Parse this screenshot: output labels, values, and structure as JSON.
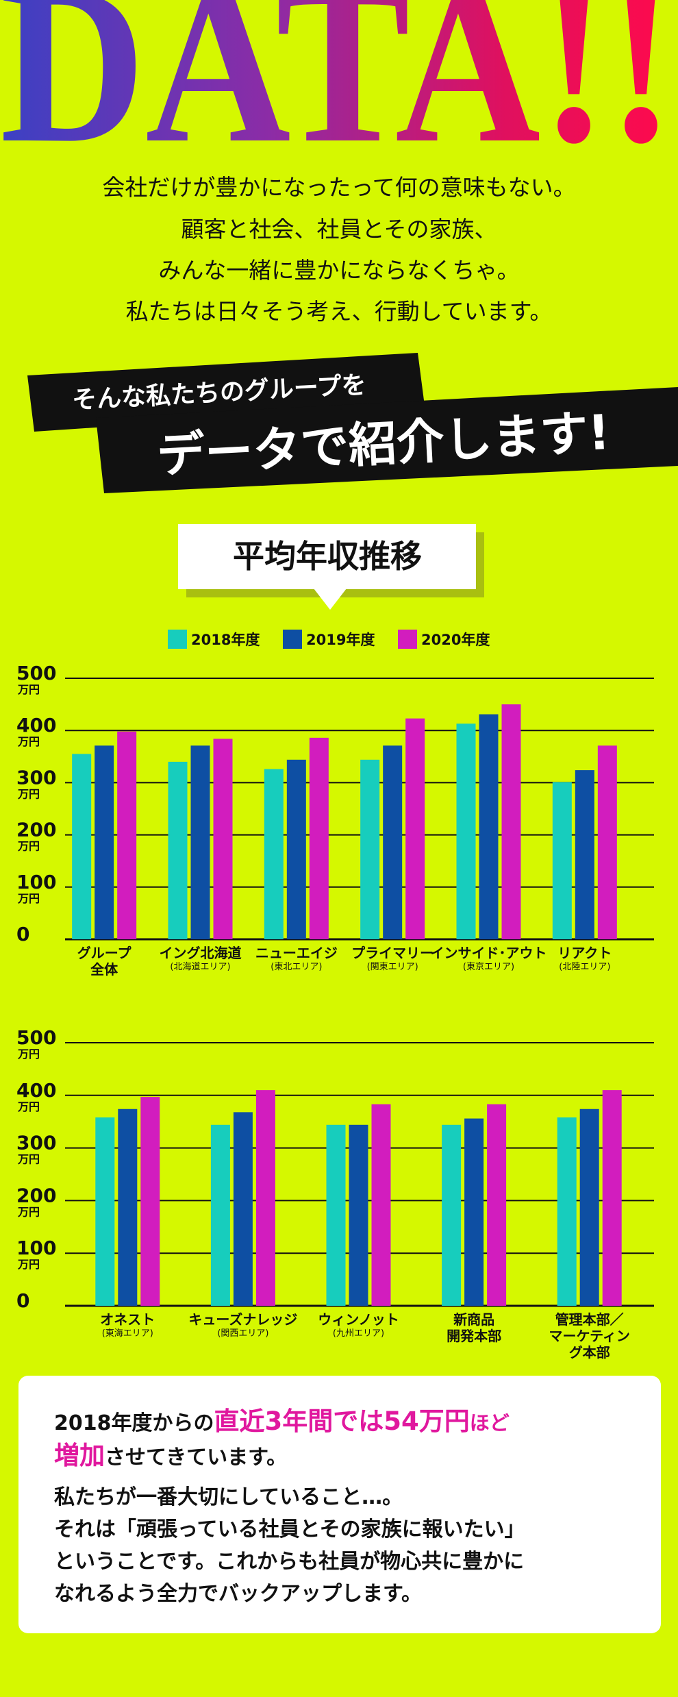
{
  "header": {
    "title": "DATA!!",
    "intro": [
      "会社だけが豊かになったって何の意味もない。",
      "顧客と社会、社員とその家族、",
      "みんな一緒に豊かにならなくちゃ。",
      "私たちは日々そう考え、行動しています。"
    ]
  },
  "banner": {
    "lead": "そんな私たちのグループを",
    "headline": "データで紹介します!"
  },
  "section": {
    "title": "平均年収推移"
  },
  "chart_data": [
    {
      "type": "bar",
      "categories": [
        "グループ\n全体",
        "イング北海道",
        "ニューエイジ",
        "プライマリー",
        "インサイド･アウト",
        "リアクト"
      ],
      "category_notes": [
        null,
        "(北海道エリア)",
        "(東北エリア)",
        "(関東エリア)",
        "(東京エリア)",
        "(北陸エリア)"
      ],
      "series": [
        {
          "name": "2018年度",
          "color": "#17cdbd",
          "values": [
            355,
            340,
            326,
            344,
            413,
            301
          ]
        },
        {
          "name": "2019年度",
          "color": "#0e4fa3",
          "values": [
            371,
            371,
            344,
            371,
            431,
            324
          ]
        },
        {
          "name": "2020年度",
          "color": "#d21dbe",
          "values": [
            398,
            384,
            386,
            423,
            450,
            371
          ]
        }
      ],
      "ylim": [
        0,
        500
      ],
      "yticks": [
        0,
        100,
        200,
        300,
        400,
        500
      ],
      "y_unit": "万円",
      "grid": true,
      "legend": true
    },
    {
      "type": "bar",
      "categories": [
        "オネスト",
        "キューズナレッジ",
        "ウィンノット",
        "新商品\n開発本部",
        "管理本部／\nマーケティング本部"
      ],
      "category_notes": [
        "(東海エリア)",
        "(関西エリア)",
        "(九州エリア)",
        null,
        null
      ],
      "series": [
        {
          "name": "2018年度",
          "color": "#17cdbd",
          "values": [
            358,
            344,
            344,
            344,
            358
          ]
        },
        {
          "name": "2019年度",
          "color": "#0e4fa3",
          "values": [
            374,
            368,
            344,
            356,
            374
          ]
        },
        {
          "name": "2020年度",
          "color": "#d21dbe",
          "values": [
            397,
            410,
            383,
            383,
            410
          ]
        }
      ],
      "ylim": [
        0,
        500
      ],
      "yticks": [
        0,
        100,
        200,
        300,
        400,
        500
      ],
      "y_unit": "万円",
      "grid": true,
      "legend": false
    }
  ],
  "footer": {
    "lines": [
      [
        {
          "text": "2018年度からの",
          "style": "plain"
        },
        {
          "text": "直近3年間では54万円",
          "style": "highlight"
        },
        {
          "text": "ほど",
          "style": "highlight-small"
        }
      ],
      [
        {
          "text": "増加",
          "style": "highlight"
        },
        {
          "text": "させてきています。",
          "style": "plain"
        }
      ],
      [
        {
          "text": "私たちが一番大切にしていること…。",
          "style": "plain"
        }
      ],
      [
        {
          "text": "それは「頑張っている社員とその家族に報いたい」",
          "style": "plain"
        }
      ],
      [
        {
          "text": "ということです。これからも社員が物心共に豊かに",
          "style": "plain"
        }
      ],
      [
        {
          "text": "なれるよう全力でバックアップします。",
          "style": "plain"
        }
      ]
    ]
  }
}
